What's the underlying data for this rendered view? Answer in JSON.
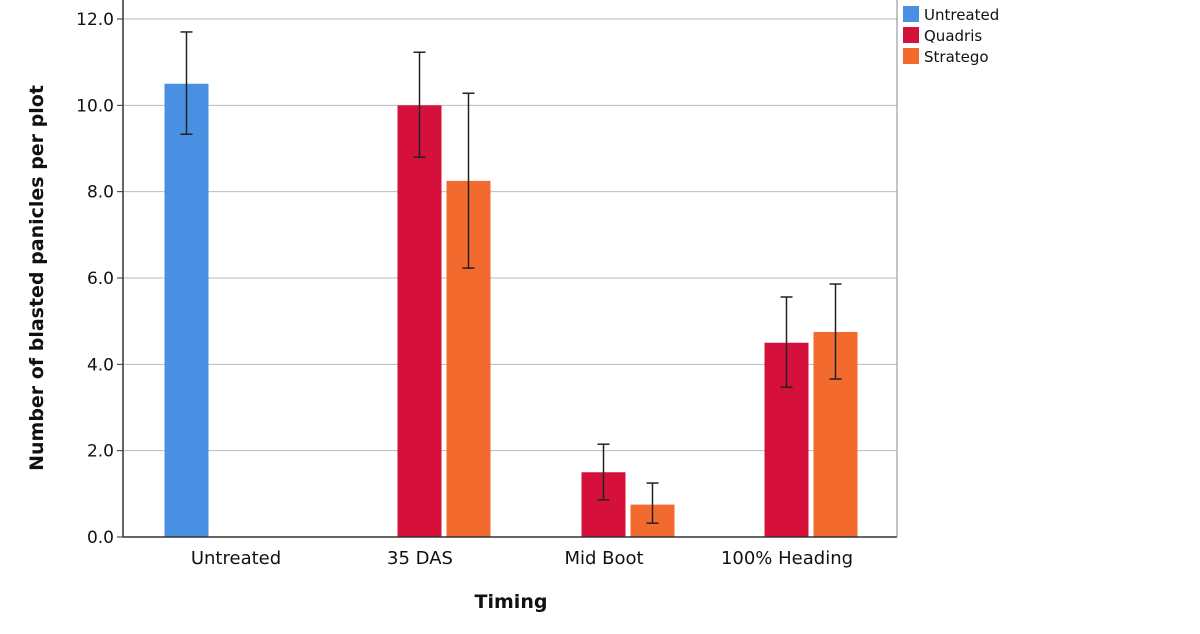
{
  "chart_data": {
    "type": "bar",
    "title": "",
    "xlabel": "Timing",
    "ylabel": "Number of blasted panicles per plot",
    "ylim": [
      0,
      12
    ],
    "yticks": [
      "0.0",
      "2.0",
      "4.0",
      "6.0",
      "8.0",
      "10.0",
      "12.0"
    ],
    "grid": true,
    "legend_position": "top-right",
    "categories": [
      "Untreated",
      "35 DAS",
      "Mid Boot",
      "100% Heading"
    ],
    "series": [
      {
        "name": "Untreated",
        "color": "#4a90e2",
        "values": [
          10.5,
          null,
          null,
          null
        ],
        "err_high": [
          11.7,
          null,
          null,
          null
        ],
        "err_low": [
          9.33,
          null,
          null,
          null
        ]
      },
      {
        "name": "Quadris",
        "color": "#d5103a",
        "values": [
          null,
          10.0,
          1.5,
          4.5
        ],
        "err_high": [
          null,
          11.23,
          2.15,
          5.56
        ],
        "err_low": [
          null,
          8.8,
          0.86,
          3.47
        ]
      },
      {
        "name": "Stratego",
        "color": "#f26a2e",
        "values": [
          null,
          8.25,
          0.75,
          4.75
        ],
        "err_high": [
          null,
          10.28,
          1.25,
          5.86
        ],
        "err_low": [
          null,
          6.23,
          0.32,
          3.66
        ]
      }
    ]
  }
}
